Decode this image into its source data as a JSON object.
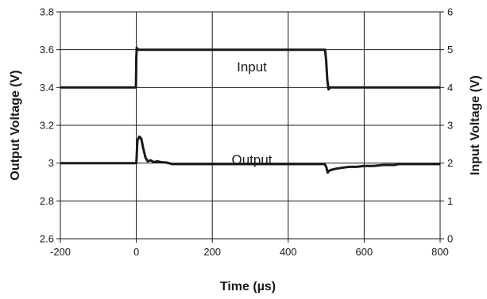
{
  "chart_data": {
    "type": "line",
    "title": "",
    "xlabel": "Time (µs)",
    "ylabel_left": "Output Voltage (V)",
    "ylabel_right": "Input Voltage (V)",
    "xlim": [
      -200,
      800
    ],
    "ylim_left": [
      2.6,
      3.8
    ],
    "ylim_right": [
      0,
      6
    ],
    "grid": true,
    "x_ticks": [
      "-200",
      "0",
      "200",
      "400",
      "600",
      "800"
    ],
    "y_left_ticks": [
      "2.6",
      "2.8",
      "3",
      "3.2",
      "3.4",
      "3.6",
      "3.8"
    ],
    "y_right_ticks": [
      "0",
      "1",
      "2",
      "3",
      "4",
      "5",
      "6"
    ],
    "annotations": {
      "input": "Input",
      "output": "Output"
    },
    "line_color": "#1a1a1a",
    "series": [
      {
        "key": "input",
        "axis": "right",
        "x": [
          -200,
          -1,
          0,
          1,
          5,
          10,
          497,
          500,
          503,
          506,
          510,
          800
        ],
        "y": [
          4.0,
          4.0,
          4.8,
          5.05,
          5.0,
          5.0,
          5.0,
          4.7,
          4.2,
          3.95,
          4.0,
          4.0
        ]
      },
      {
        "key": "output",
        "axis": "left",
        "x": [
          -200,
          -1,
          0,
          3,
          8,
          13,
          18,
          24,
          30,
          38,
          46,
          55,
          65,
          80,
          95,
          200,
          496,
          500,
          504,
          508,
          515,
          525,
          540,
          560,
          580,
          600,
          625,
          650,
          680,
          690,
          800
        ],
        "y": [
          3.0,
          3.0,
          3.0,
          3.12,
          3.14,
          3.13,
          3.08,
          3.03,
          3.01,
          3.015,
          3.005,
          3.01,
          3.005,
          3.003,
          2.995,
          2.995,
          2.995,
          2.98,
          2.95,
          2.96,
          2.965,
          2.97,
          2.975,
          2.98,
          2.98,
          2.985,
          2.985,
          2.99,
          2.99,
          2.995,
          2.995
        ]
      }
    ]
  }
}
